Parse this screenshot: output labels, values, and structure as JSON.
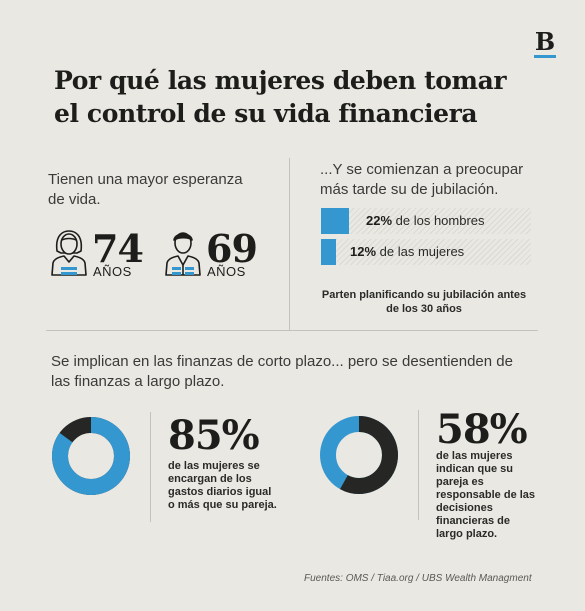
{
  "brand": {
    "logo_letter": "B",
    "accent": "#3597cf"
  },
  "title": "Por qué las mujeres deben tomar el control de su vida financiera",
  "life": {
    "heading": "Tienen una mayor esperanza de vida.",
    "woman": {
      "icon": "woman-icon",
      "value": "74",
      "unit": "AÑOS"
    },
    "man": {
      "icon": "man-icon",
      "value": "69",
      "unit": "AÑOS"
    }
  },
  "retirement": {
    "heading": "...Y se comienzan a preocupar más tarde su de jubilación.",
    "bars": [
      {
        "percent": 22,
        "value_text": "22%",
        "label_text": " de los hombres"
      },
      {
        "percent": 12,
        "value_text": "12%",
        "label_text": " de las mujeres"
      }
    ],
    "note": "Parten planificando su jubilación antes de los 30 años"
  },
  "finance": {
    "heading": "Se implican en las finanzas de corto plazo... pero se desentienden de las finanzas a largo plazo.",
    "short_term": {
      "percent": 85,
      "value_text": "85%",
      "description": "de las mujeres se encargan de los gastos diarios igual o más que su pareja."
    },
    "long_term": {
      "percent": 58,
      "value_text": "58%",
      "description": "de las mujeres indican que su pareja es responsable de las decisiones financieras de largo plazo."
    },
    "colors": {
      "women": "#3597cf",
      "partner": "#262624"
    }
  },
  "source": "Fuentes: OMS / Tiaa.org / UBS Wealth Managment"
}
